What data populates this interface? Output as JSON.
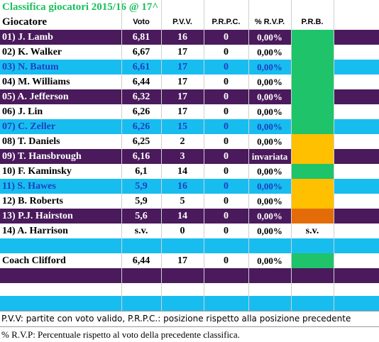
{
  "title": "Classifica giocatori 2015/16 @ 17^",
  "headers": {
    "name": "Giocatore",
    "voto": "Voto",
    "pvv": "P.V.V.",
    "prpc": "P.R.P.C.",
    "rvp": "% R.V.P.",
    "prb": "P.R.B."
  },
  "colors": {
    "purple": "#4a1a5c",
    "cyan": "#18bdf0",
    "white": "#ffffff",
    "green": "#1ec36a",
    "yellow": "#ffc000",
    "orange": "#e36c09",
    "title_green": "#18c05c",
    "blue_text": "#1f3fbf"
  },
  "rows": [
    {
      "name": "01) J. Lamb",
      "voto": "6,81",
      "pvv": "16",
      "prpc": "0",
      "rvp": "0,00%",
      "prb": "",
      "bg": "purple",
      "text": "white",
      "prb_color": "green"
    },
    {
      "name": "02) K. Walker",
      "voto": "6,67",
      "pvv": "17",
      "prpc": "0",
      "rvp": "0,00%",
      "prb": "",
      "bg": "white",
      "text": "black",
      "prb_color": "green"
    },
    {
      "name": "03) N. Batum",
      "voto": "6,61",
      "pvv": "17",
      "prpc": "0",
      "rvp": "0,00%",
      "prb": "",
      "bg": "cyan",
      "text": "blue",
      "prb_color": "green"
    },
    {
      "name": "04) M. Williams",
      "voto": "6,44",
      "pvv": "17",
      "prpc": "0",
      "rvp": "0,00%",
      "prb": "",
      "bg": "white",
      "text": "black",
      "prb_color": "green"
    },
    {
      "name": "05) A. Jefferson",
      "voto": "6,32",
      "pvv": "17",
      "prpc": "0",
      "rvp": "0,00%",
      "prb": "",
      "bg": "purple",
      "text": "white",
      "prb_color": "green"
    },
    {
      "name": "06) J. Lin",
      "voto": "6,26",
      "pvv": "17",
      "prpc": "0",
      "rvp": "0,00%",
      "prb": "",
      "bg": "white",
      "text": "black",
      "prb_color": "green"
    },
    {
      "name": "07) C. Zeller",
      "voto": "6,26",
      "pvv": "15",
      "prpc": "0",
      "rvp": "0,00%",
      "prb": "",
      "bg": "cyan",
      "text": "blue",
      "prb_color": "green"
    },
    {
      "name": "08) T. Daniels",
      "voto": "6,25",
      "pvv": "2",
      "prpc": "0",
      "rvp": "0,00%",
      "prb": "",
      "bg": "white",
      "text": "black",
      "prb_color": "yellow"
    },
    {
      "name": "09) T. Hansbrough",
      "voto": "6,16",
      "pvv": "3",
      "prpc": "0",
      "rvp": "invariata",
      "prb": "",
      "bg": "purple",
      "text": "white",
      "prb_color": "yellow"
    },
    {
      "name": "10) F. Kaminsky",
      "voto": "6,1",
      "pvv": "14",
      "prpc": "0",
      "rvp": "0,00%",
      "prb": "",
      "bg": "white",
      "text": "black",
      "prb_color": "green"
    },
    {
      "name": "11) S. Hawes",
      "voto": "5,9",
      "pvv": "16",
      "prpc": "0",
      "rvp": "0,00%",
      "prb": "",
      "bg": "cyan",
      "text": "blue",
      "prb_color": "yellow"
    },
    {
      "name": "12) B. Roberts",
      "voto": "5,9",
      "pvv": "5",
      "prpc": "0",
      "rvp": "0,00%",
      "prb": "",
      "bg": "white",
      "text": "black",
      "prb_color": "yellow"
    },
    {
      "name": "13) P.J. Hairston",
      "voto": "5,6",
      "pvv": "14",
      "prpc": "0",
      "rvp": "0,00%",
      "prb": "",
      "bg": "purple",
      "text": "white",
      "prb_color": "orange"
    },
    {
      "name": "14) A. Harrison",
      "voto": "s.v.",
      "pvv": "0",
      "prpc": "0",
      "rvp": "0,00%",
      "prb": "s.v.",
      "bg": "white",
      "text": "black",
      "prb_color": ""
    }
  ],
  "coach": {
    "name": "Coach Clifford",
    "voto": "6,44",
    "pvv": "17",
    "prpc": "0",
    "rvp": "0,00%",
    "prb": "",
    "prb_color": "green"
  },
  "notes": [
    "P.V.V: partite con voto valido, P.R.P.C.: posizione rispetto alla posizione precedente",
    "% R.V.P: Percentuale rispetto al voto della precedente classifica."
  ]
}
